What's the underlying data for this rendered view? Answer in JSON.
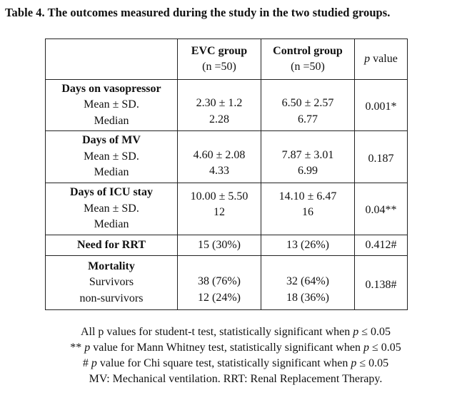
{
  "caption": "Table 4. The outcomes measured during the study in the two studied groups.",
  "columns": {
    "evc": {
      "title": "EVC group",
      "n": "(n =50)"
    },
    "control": {
      "title": "Control group",
      "n": "(n =50)"
    },
    "p": {
      "italic": "p",
      "rest": " value"
    }
  },
  "rows": [
    {
      "label": "Days on vasopressor",
      "sub1": "Mean ± SD.",
      "sub2": "Median",
      "evc1": "2.30 ± 1.2",
      "evc2": "2.28",
      "ctrl1": "6.50 ± 2.57",
      "ctrl2": "6.77",
      "p": "0.001*"
    },
    {
      "label": "Days of MV",
      "sub1": "Mean ± SD.",
      "sub2": "Median",
      "evc1": "4.60 ± 2.08",
      "evc2": "4.33",
      "ctrl1": "7.87 ± 3.01",
      "ctrl2": "6.99",
      "p": "0.187"
    },
    {
      "label": "Days of ICU stay",
      "sub1": "Mean ± SD.",
      "sub2": "Median",
      "evc1": "10.00 ± 5.50",
      "evc2": "12",
      "ctrl1": "14.10 ± 6.47",
      "ctrl2": "16",
      "p": "0.04**"
    },
    {
      "label": "Need for RRT",
      "evc1": "15 (30%)",
      "ctrl1": "13 (26%)",
      "p": "0.412#"
    },
    {
      "label": "Mortality",
      "sub1": "Survivors",
      "sub2": "non-survivors",
      "evc1": "38 (76%)",
      "evc2": "12 (24%)",
      "ctrl1": "32 (64%)",
      "ctrl2": "18 (36%)",
      "p": "0.138#"
    }
  ],
  "notes": [
    {
      "pre": "All p values for student-t test, statistically significant when ",
      "italic": "p",
      "post": " ≤ 0.05"
    },
    {
      "pre": "** ",
      "italic": "p",
      "mid": " value for Mann Whitney test, statistically significant when ",
      "italic2": "p",
      "post": " ≤ 0.05"
    },
    {
      "pre": "# ",
      "italic": "p",
      "mid": " value for Chi square test, statistically significant when ",
      "italic2": "p",
      "post": " ≤ 0.05"
    },
    {
      "pre": "MV: Mechanical ventilation. RRT: Renal Replacement Therapy."
    }
  ]
}
